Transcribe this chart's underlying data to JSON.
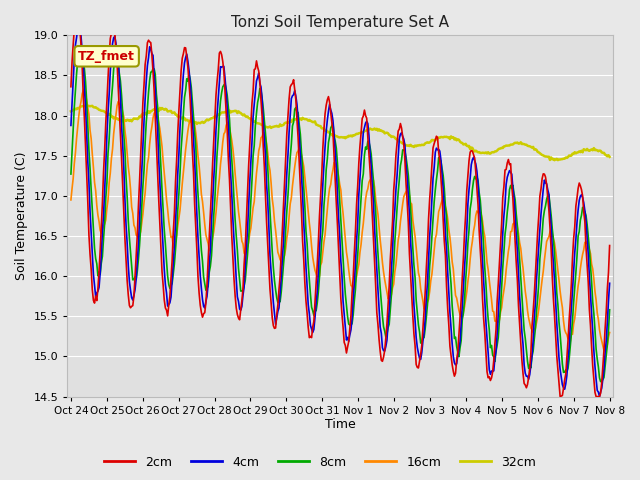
{
  "title": "Tonzi Soil Temperature Set A",
  "xlabel": "Time",
  "ylabel": "Soil Temperature (C)",
  "ylim": [
    14.5,
    19.0
  ],
  "yticks": [
    14.5,
    15.0,
    15.5,
    16.0,
    16.5,
    17.0,
    17.5,
    18.0,
    18.5,
    19.0
  ],
  "xtick_labels": [
    "Oct 24",
    "Oct 25",
    "Oct 26",
    "Oct 27",
    "Oct 28",
    "Oct 29",
    "Oct 30",
    "Oct 31",
    "Nov 1",
    "Nov 2",
    "Nov 3",
    "Nov 4",
    "Nov 5",
    "Nov 6",
    "Nov 7",
    "Nov 8"
  ],
  "colors": {
    "2cm": "#dd0000",
    "4cm": "#0000dd",
    "8cm": "#00aa00",
    "16cm": "#ff8800",
    "32cm": "#cccc00"
  },
  "legend_label": "TZ_fmet",
  "legend_box_facecolor": "#ffffcc",
  "legend_box_edgecolor": "#999900",
  "fig_facecolor": "#e8e8e8",
  "ax_facecolor": "#e0e0e0",
  "grid_color": "#ffffff",
  "n_points": 480
}
